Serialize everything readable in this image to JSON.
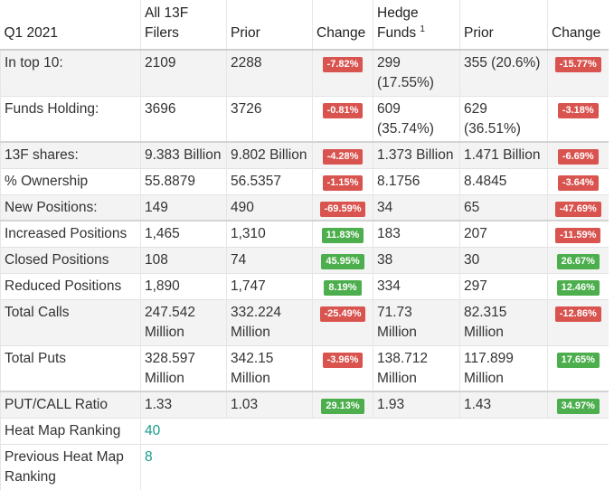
{
  "header": {
    "period": "Q1 2021",
    "col1": "All 13F Filers",
    "col2": "Prior",
    "col3": "Change",
    "col4": "Hedge Funds",
    "col4_sup": "1",
    "col5": "Prior",
    "col6": "Change"
  },
  "rows": [
    {
      "label": "In top 10:",
      "all": "2109",
      "all_prior": "2288",
      "all_change": "-7.82%",
      "hf": "299 (17.55%)",
      "hf_prior": "355 (20.6%)",
      "hf_change": "-15.77%"
    },
    {
      "label": "Funds Holding:",
      "all": "3696",
      "all_prior": "3726",
      "all_change": "-0.81%",
      "hf": "609 (35.74%)",
      "hf_prior": "629 (36.51%)",
      "hf_change": "-3.18%"
    },
    {
      "label": "13F shares:",
      "all": "9.383 Billion",
      "all_prior": "9.802 Billion",
      "all_change": "-4.28%",
      "hf": "1.373 Billion",
      "hf_prior": "1.471 Billion",
      "hf_change": "-6.69%"
    },
    {
      "label": "% Ownership",
      "all": "55.8879",
      "all_prior": "56.5357",
      "all_change": "-1.15%",
      "hf": "8.1756",
      "hf_prior": "8.4845",
      "hf_change": "-3.64%"
    },
    {
      "label": "New Positions:",
      "all": "149",
      "all_prior": "490",
      "all_change": "-69.59%",
      "hf": "34",
      "hf_prior": "65",
      "hf_change": "-47.69%"
    },
    {
      "label": "Increased Positions",
      "all": "1,465",
      "all_prior": "1,310",
      "all_change": "11.83%",
      "hf": "183",
      "hf_prior": "207",
      "hf_change": "-11.59%"
    },
    {
      "label": "Closed Positions",
      "all": "108",
      "all_prior": "74",
      "all_change": "45.95%",
      "hf": "38",
      "hf_prior": "30",
      "hf_change": "26.67%"
    },
    {
      "label": "Reduced Positions",
      "all": "1,890",
      "all_prior": "1,747",
      "all_change": "8.19%",
      "hf": "334",
      "hf_prior": "297",
      "hf_change": "12.46%"
    },
    {
      "label": "Total Calls",
      "all": "247.542 Million",
      "all_prior": "332.224 Million",
      "all_change": "-25.49%",
      "hf": "71.73 Million",
      "hf_prior": "82.315 Million",
      "hf_change": "-12.86%"
    },
    {
      "label": "Total Puts",
      "all": "328.597 Million",
      "all_prior": "342.15 Million",
      "all_change": "-3.96%",
      "hf": "138.712 Million",
      "hf_prior": "117.899 Million",
      "hf_change": "17.65%"
    },
    {
      "label": "PUT/CALL Ratio",
      "all": "1.33",
      "all_prior": "1.03",
      "all_change": "29.13%",
      "hf": "1.93",
      "hf_prior": "1.43",
      "hf_change": "34.97%"
    }
  ],
  "heatmap": {
    "label": "Heat Map Ranking",
    "value": "40",
    "prev_label": "Previous Heat Map Ranking",
    "prev_value": "8"
  },
  "colors": {
    "negative": "#d9534f",
    "positive": "#4cae4c",
    "link": "#179b8c"
  }
}
